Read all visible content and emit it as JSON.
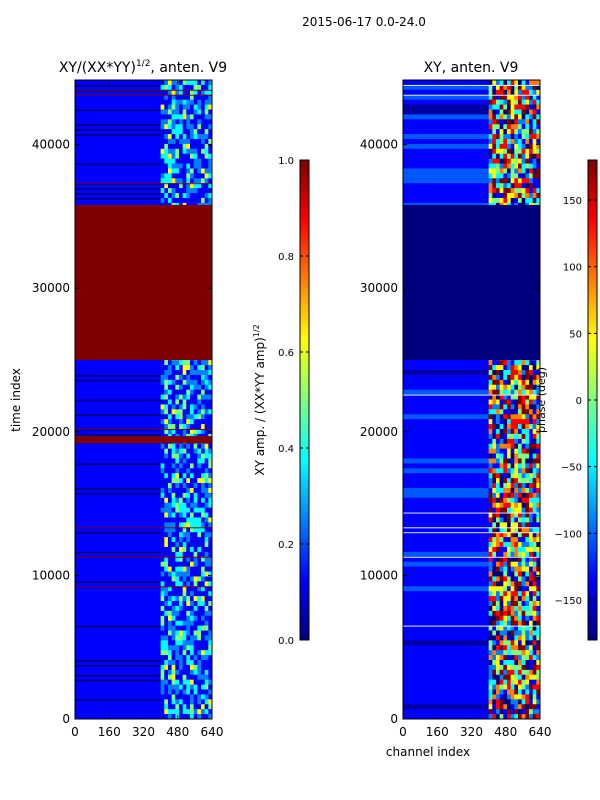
{
  "figure": {
    "suptitle": "2015-06-17 0.0-24.0"
  },
  "colors": {
    "jet": [
      "#00007f",
      "#0000ff",
      "#007fff",
      "#00ffff",
      "#7fff7f",
      "#ffff00",
      "#ff7f00",
      "#ff0000",
      "#7f0000"
    ]
  },
  "chart_data": [
    {
      "type": "heatmap",
      "title_main": "XY/(XX*YY)",
      "title_sup": "1/2",
      "title_tail": ", anten. V9",
      "xlabel": "",
      "ylabel": "time index",
      "xlim": [
        0,
        640
      ],
      "ylim": [
        0,
        44500
      ],
      "xticks": [
        0,
        160,
        320,
        480,
        640
      ],
      "yticks": [
        0,
        10000,
        20000,
        30000,
        40000
      ],
      "colorbar": {
        "label_main": "XY amp. / (XX*YY amp)",
        "label_sup": "1/2",
        "range": [
          0.0,
          1.0
        ],
        "ticks": [
          "0.0",
          "0.2",
          "0.4",
          "0.6",
          "0.8",
          "1.0"
        ],
        "tick_values": [
          0.0,
          0.2,
          0.4,
          0.6,
          0.8,
          1.0
        ]
      },
      "saturated_blocks": [
        [
          25000,
          35800
        ],
        [
          19200,
          19700
        ]
      ],
      "active_channels": [
        [
          400,
          640
        ]
      ]
    },
    {
      "type": "heatmap",
      "title_main": "XY, anten. V9",
      "xlabel": "channel index",
      "ylabel": "",
      "xlim": [
        0,
        640
      ],
      "ylim": [
        0,
        44500
      ],
      "xticks": [
        0,
        160,
        320,
        480,
        640
      ],
      "yticks": [
        0,
        10000,
        20000,
        30000,
        40000
      ],
      "colorbar": {
        "label_main": "phase (deg)",
        "range": [
          -180,
          180
        ],
        "ticks": [
          "150",
          "100",
          "50",
          "0",
          "−50",
          "−100",
          "−150"
        ],
        "tick_values": [
          150,
          100,
          50,
          0,
          -50,
          -100,
          -150
        ]
      },
      "saturated_blocks": [
        [
          25000,
          35800
        ]
      ],
      "active_channels": [
        [
          400,
          640
        ]
      ]
    }
  ]
}
